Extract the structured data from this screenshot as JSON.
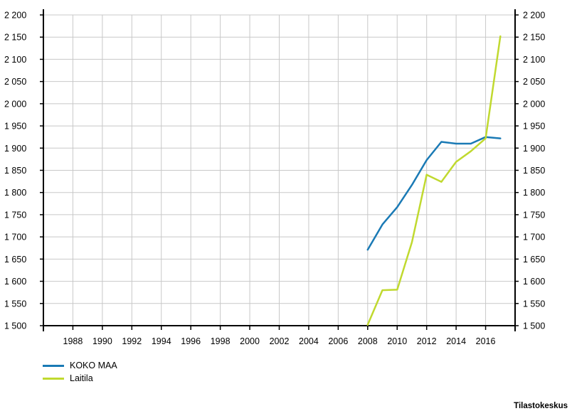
{
  "chart_data": {
    "type": "line",
    "x_ticks": [
      1988,
      1990,
      1992,
      1994,
      1996,
      1998,
      2000,
      2002,
      2004,
      2006,
      2008,
      2010,
      2012,
      2014,
      2016
    ],
    "xlim": [
      1986,
      2018
    ],
    "ylim": [
      1500,
      2200
    ],
    "y_ticks": [
      1500,
      1550,
      1600,
      1650,
      1700,
      1750,
      1800,
      1850,
      1900,
      1950,
      2000,
      2050,
      2100,
      2150,
      2200
    ],
    "y_tick_labels": [
      "1 500",
      "1 550",
      "1 600",
      "1 650",
      "1 700",
      "1 750",
      "1 800",
      "1 850",
      "1 900",
      "1 950",
      "2 000",
      "2 050",
      "2 100",
      "2 150",
      "2 200"
    ],
    "grid": true,
    "legend_position": "bottom-left",
    "series": [
      {
        "name": "KOKO MAA",
        "color": "#1a7ab5",
        "x": [
          2008,
          2009,
          2010,
          2011,
          2012,
          2013,
          2014,
          2015,
          2016,
          2017
        ],
        "values": [
          1671,
          1728,
          1767,
          1817,
          1873,
          1914,
          1910,
          1910,
          1925,
          1922
        ]
      },
      {
        "name": "Laitila",
        "color": "#c0d92f",
        "x": [
          2008,
          2009,
          2010,
          2011,
          2012,
          2013,
          2014,
          2015,
          2016,
          2017
        ],
        "values": [
          1502,
          1580,
          1581,
          1688,
          1840,
          1824,
          1869,
          1893,
          1922,
          2152
        ]
      }
    ]
  },
  "legend": {
    "items": [
      {
        "label": "KOKO MAA",
        "color": "#1a7ab5"
      },
      {
        "label": "Laitila",
        "color": "#c0d92f"
      }
    ]
  },
  "source": "Tilastokeskus"
}
